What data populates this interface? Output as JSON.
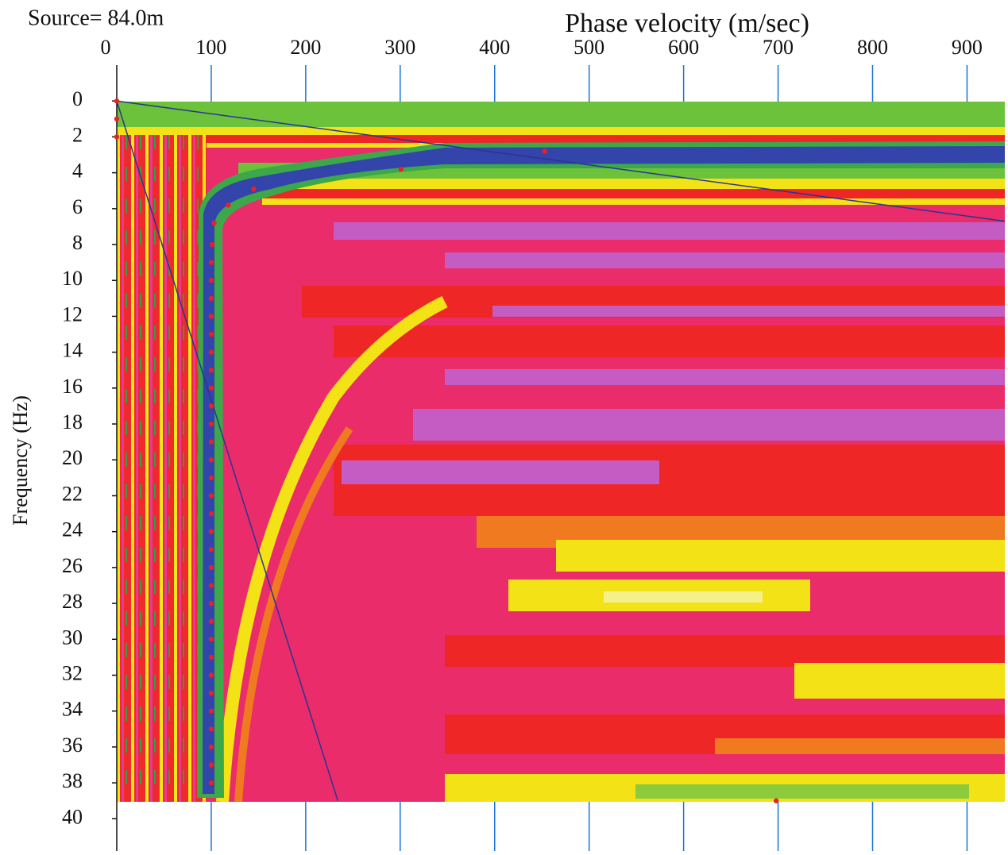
{
  "chart_data": {
    "type": "scatter",
    "title": "Phase velocity (m/sec)",
    "subtitle": "Source= 84.0m",
    "y_label": "Frequency (Hz)",
    "xlim": [
      0,
      940
    ],
    "xticks": [
      0,
      100,
      200,
      300,
      400,
      500,
      600,
      700,
      800,
      900
    ],
    "ylim": [
      -2,
      41.8
    ],
    "yticks": [
      0,
      2,
      4,
      6,
      8,
      10,
      12,
      14,
      16,
      18,
      20,
      22,
      24,
      26,
      28,
      30,
      32,
      34,
      36,
      38,
      40
    ],
    "y_inverted": true,
    "grid": true,
    "grid_color": "#1a73d9",
    "points": {
      "color": "#e8202a",
      "x": [
        0,
        0,
        0,
        453,
        301,
        145,
        118,
        103,
        101,
        100,
        100,
        100,
        100,
        100,
        100,
        100,
        100,
        100,
        100,
        100,
        100,
        100,
        100,
        100,
        100,
        100,
        100,
        100,
        100,
        100,
        100,
        100,
        100,
        100,
        100,
        100,
        100,
        100,
        100,
        698
      ],
      "y": [
        0,
        1,
        2,
        2.8,
        3.8,
        4.9,
        5.8,
        6.8,
        8,
        9,
        10,
        11,
        12,
        13,
        14,
        15,
        16,
        17,
        18,
        19,
        20,
        21,
        22,
        23,
        24,
        25,
        26,
        27,
        28,
        29,
        30,
        31,
        32,
        33,
        34,
        35,
        36,
        37,
        38,
        39
      ]
    },
    "lines": [
      {
        "color": "#2a3590",
        "x": [
          0,
          940
        ],
        "y": [
          0,
          6.7
        ]
      },
      {
        "color": "#2a3590",
        "x": [
          0,
          234
        ],
        "y": [
          0,
          39
        ]
      }
    ]
  }
}
